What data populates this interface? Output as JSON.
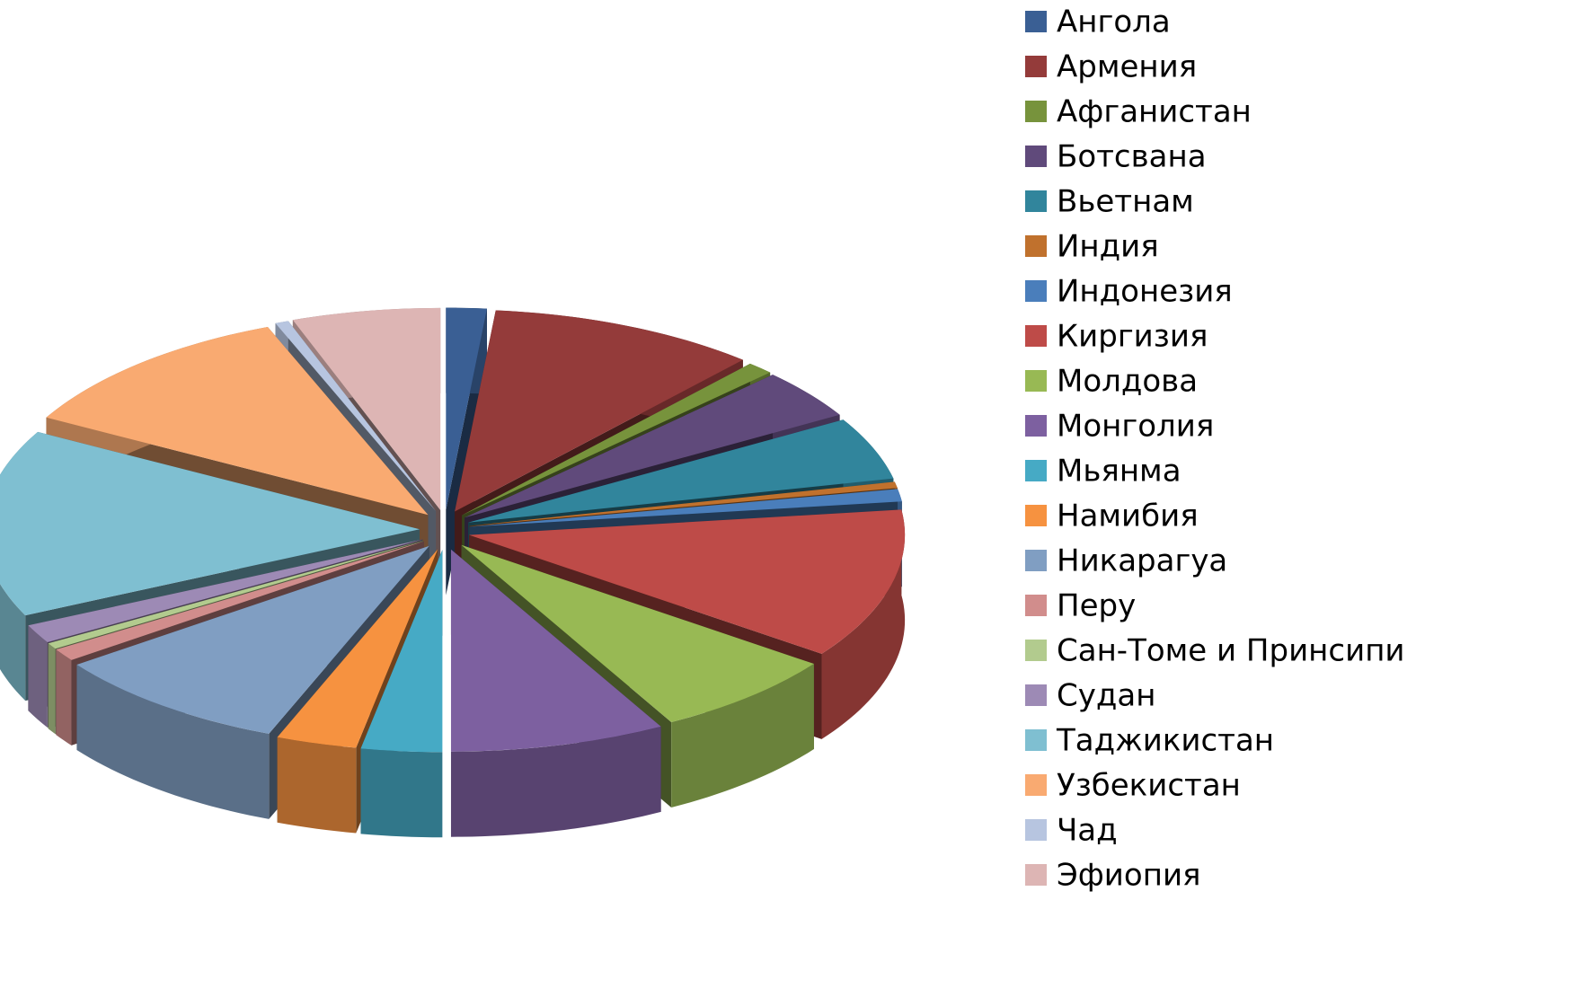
{
  "chart_data": {
    "type": "pie",
    "legend": "right",
    "categories": [
      "Ангола",
      "Армения",
      "Афганистан",
      "Ботсвана",
      "Вьетнам",
      "Индия",
      "Индонезия",
      "Киргизия",
      "Молдова",
      "Монголия",
      "Мьянма",
      "Намибия",
      "Никарагуа",
      "Перу",
      "Сан-Томе и Принсипи",
      "Судан",
      "Таджикистан",
      "Узбекистан",
      "Чад",
      "Эфиопия"
    ],
    "values": [
      1.5,
      10,
      1,
      4,
      5,
      0.5,
      1,
      12,
      7,
      8,
      3,
      3,
      9,
      1,
      0.5,
      1.5,
      15,
      11,
      0.5,
      5.5
    ],
    "colors": [
      "#3a5f94",
      "#943b3a",
      "#77933c",
      "#604a7b",
      "#31859c",
      "#c0712d",
      "#4a7ebb",
      "#be4b48",
      "#98b954",
      "#7d60a0",
      "#46aac5",
      "#f69240",
      "#809ec2",
      "#d18d8c",
      "#b2cb8e",
      "#9d8ab5",
      "#7fbfd1",
      "#f9aa71",
      "#b7c5e0",
      "#ddb5b4"
    ]
  }
}
